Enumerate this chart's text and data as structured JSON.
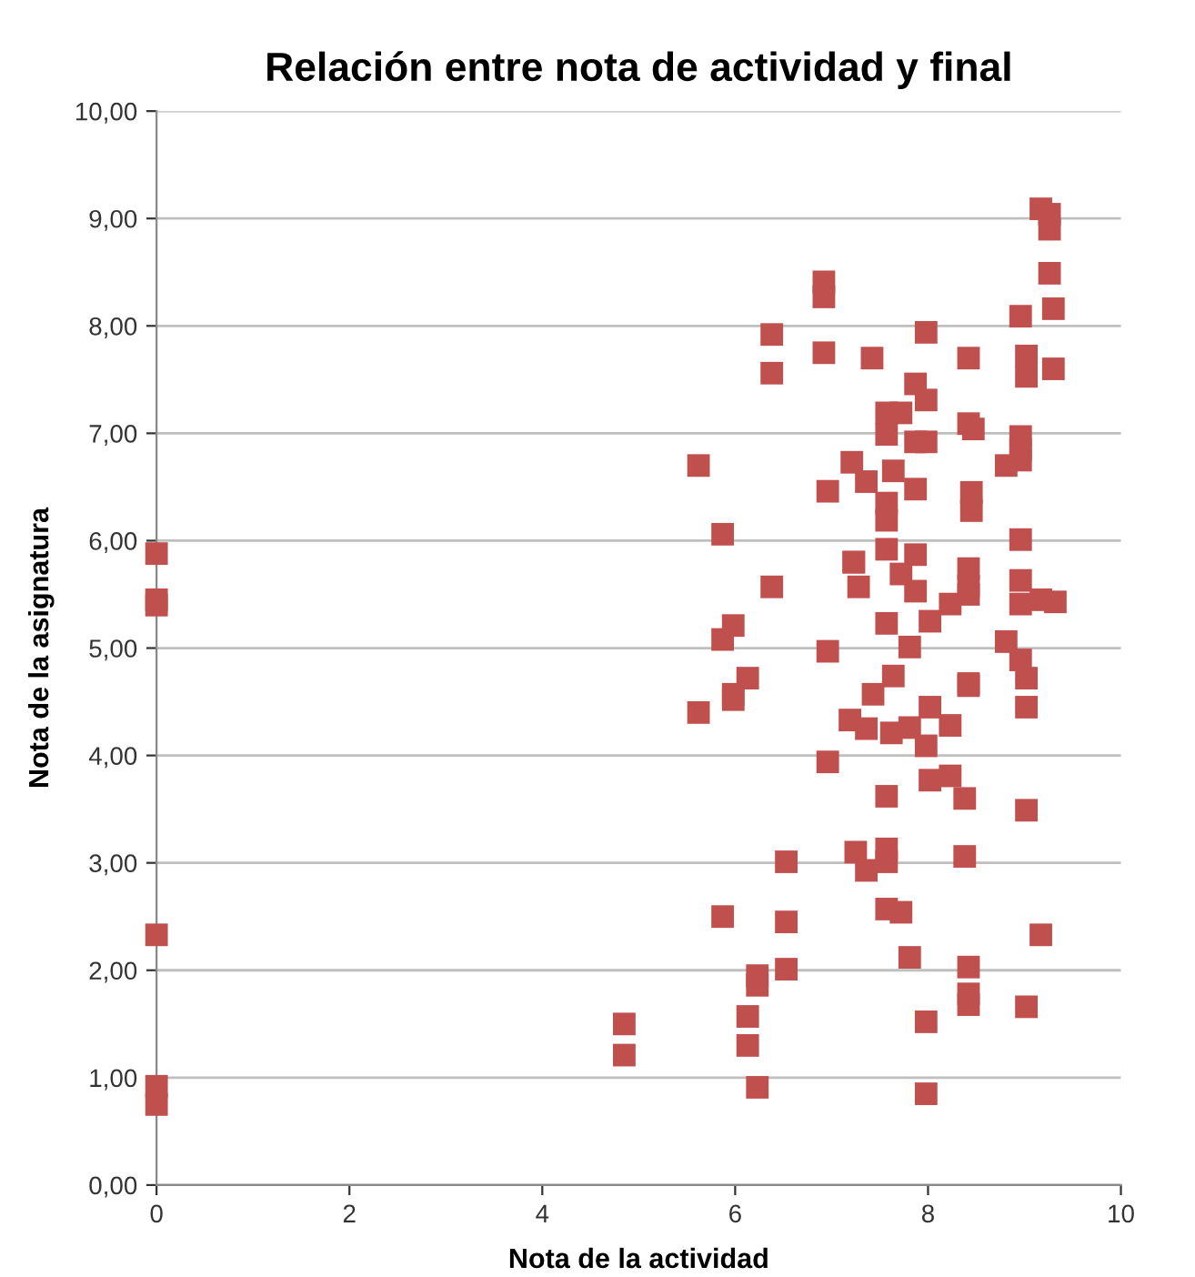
{
  "chart_data": {
    "type": "scatter",
    "title": "Relación entre nota de actividad y final",
    "xlabel": "Nota de la actividad",
    "ylabel": "Nota de la asignatura",
    "xlim": [
      0,
      10
    ],
    "xticks": [
      0,
      2,
      4,
      6,
      8,
      10
    ],
    "ylim": [
      0,
      10
    ],
    "yticks": [
      {
        "value": 0,
        "label": "0,00"
      },
      {
        "value": 1,
        "label": "1,00"
      },
      {
        "value": 2,
        "label": "2,00"
      },
      {
        "value": 3,
        "label": "3,00"
      },
      {
        "value": 4,
        "label": "4,00"
      },
      {
        "value": 5,
        "label": "5,00"
      },
      {
        "value": 6,
        "label": "6,00"
      },
      {
        "value": 7,
        "label": "7,00"
      },
      {
        "value": 8,
        "label": "8,00"
      },
      {
        "value": 9,
        "label": "9,00"
      },
      {
        "value": 10,
        "label": "10,00"
      }
    ],
    "grid": "y",
    "marker": "square",
    "legend": false,
    "series": [
      {
        "color": "#c0504d",
        "x": [
          0,
          0,
          0,
          0,
          0,
          0,
          4.85,
          4.85,
          5.62,
          5.87,
          5.87,
          5.98,
          5.98,
          5.98,
          6.13,
          5.62,
          5.87,
          6.38,
          6.38,
          6.38,
          6.53,
          6.53,
          6.53,
          6.23,
          6.23,
          6.13,
          6.13,
          6.23,
          6.92,
          6.92,
          6.92,
          6.96,
          6.96,
          6.96,
          7.21,
          7.23,
          7.28,
          7.19,
          7.36,
          7.62,
          7.81,
          7.98,
          8.02,
          8.23,
          8.42,
          9.02,
          9.02,
          8.02,
          8.23,
          8.38,
          9.02,
          7.57,
          7.25,
          7.36,
          7.57,
          7.57,
          8.38,
          7.57,
          7.72,
          9.17,
          7.81,
          8.42,
          8.42,
          8.42,
          9.02,
          7.98,
          7.98,
          7.43,
          9.17,
          9.26,
          9.26,
          9.26,
          9.3,
          8.96,
          7.98,
          7.42,
          8.42,
          9.02,
          9.02,
          9.3,
          7.87,
          7.98,
          7.57,
          7.72,
          8.42,
          8.47,
          7.57,
          7.87,
          7.98,
          8.96,
          8.96,
          8.96,
          8.81,
          7.64,
          7.36,
          7.87,
          8.45,
          8.45,
          7.57,
          7.57,
          8.96,
          7.57,
          7.87,
          7.23,
          7.72,
          8.42,
          8.42,
          8.42,
          8.96,
          7.87,
          8.23,
          8.96,
          9.17,
          9.32,
          7.57,
          8.02,
          7.81,
          8.81,
          8.96,
          7.64,
          8.42
        ],
        "values": [
          5.88,
          5.45,
          5.4,
          2.33,
          0.92,
          0.75,
          1.5,
          1.21,
          6.7,
          6.06,
          5.08,
          5.21,
          4.57,
          4.52,
          4.72,
          4.4,
          2.5,
          7.92,
          7.56,
          5.57,
          3.01,
          2.45,
          2.01,
          1.95,
          1.86,
          1.57,
          1.3,
          0.91,
          8.41,
          8.27,
          7.75,
          6.46,
          4.97,
          3.94,
          6.73,
          5.8,
          5.57,
          4.33,
          4.25,
          4.21,
          4.26,
          4.09,
          4.45,
          4.28,
          4.65,
          4.45,
          4.72,
          3.77,
          3.81,
          3.6,
          3.49,
          3.62,
          3.1,
          2.93,
          3.13,
          3.01,
          3.06,
          2.57,
          2.54,
          2.33,
          2.12,
          2.03,
          1.78,
          1.68,
          1.66,
          1.52,
          0.85,
          4.57,
          9.09,
          9.04,
          8.9,
          8.49,
          8.16,
          8.09,
          7.94,
          7.7,
          7.7,
          7.72,
          7.53,
          7.6,
          7.46,
          7.31,
          7.19,
          7.19,
          7.09,
          7.04,
          6.99,
          6.92,
          6.92,
          6.97,
          6.85,
          6.75,
          6.7,
          6.65,
          6.55,
          6.48,
          6.45,
          6.28,
          6.35,
          6.19,
          6.01,
          5.92,
          5.87,
          5.8,
          5.69,
          5.74,
          5.58,
          5.5,
          5.63,
          5.53,
          5.41,
          5.41,
          5.45,
          5.43,
          5.23,
          5.25,
          5.01,
          5.06,
          4.89,
          4.74,
          4.67
        ]
      }
    ]
  }
}
